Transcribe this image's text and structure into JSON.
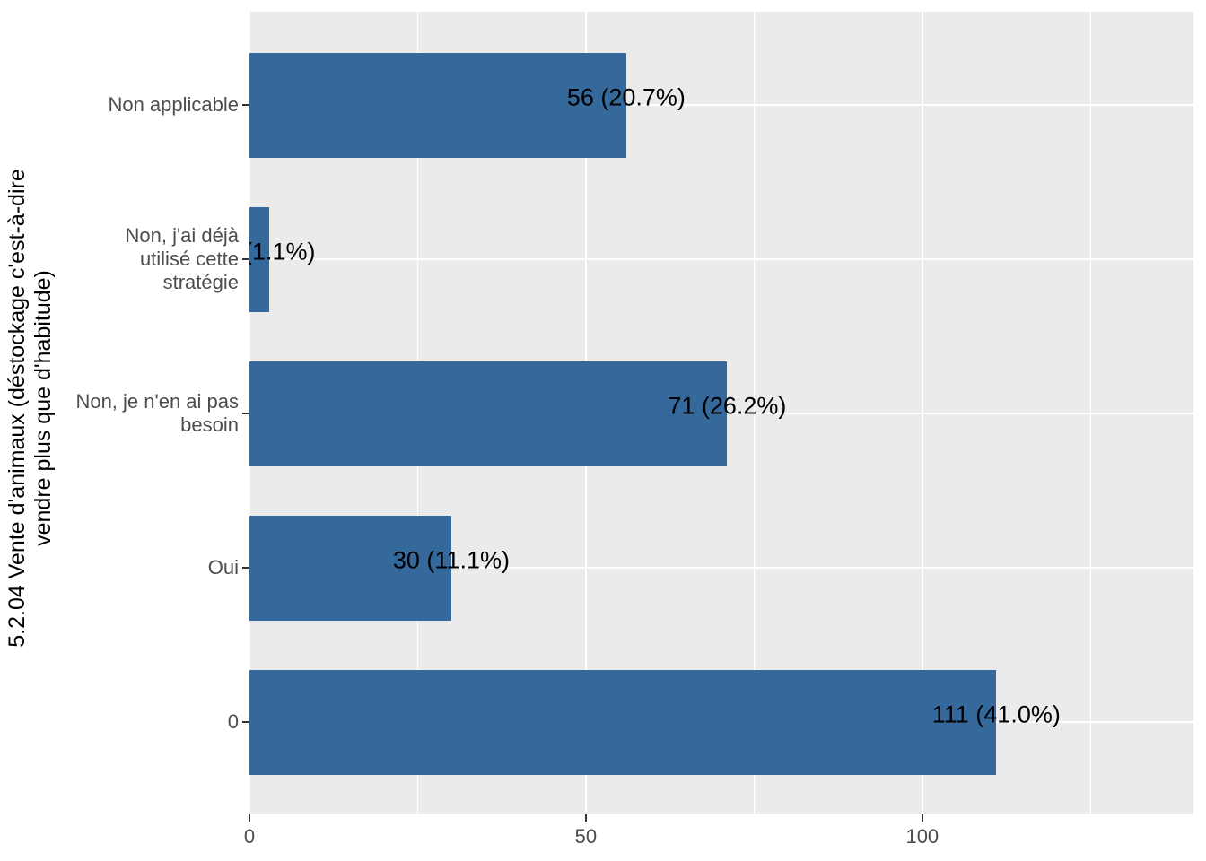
{
  "figure": {
    "panel_background": "#EBEBEB",
    "bar_color": "#35689B",
    "grid_color": "#FFFFFF",
    "axis_text_color": "#4D4D4D",
    "bar_label_color": "#000000"
  },
  "chart_data": {
    "type": "bar",
    "orientation": "horizontal",
    "title": "",
    "y_axis_title": "5.2.04 Vente d'animaux (déstockage c'est-à-dire\nvendre plus que d'habitude)",
    "xlabel": "",
    "categories": [
      "Non applicable",
      "Non, j'ai déjà\nutilisé cette\nstratégie",
      "Non, je n'en ai pas\nbesoin",
      "Oui",
      "0"
    ],
    "values": [
      56,
      3,
      71,
      30,
      111
    ],
    "bar_labels": [
      "56 (20.7%)",
      "3 (1.1%)",
      "71 (26.2%)",
      "30 (11.1%)",
      "111 (41.0%)"
    ],
    "percentages": [
      20.7,
      1.1,
      26.2,
      11.1,
      41.0
    ],
    "x_major_ticks": [
      0,
      50,
      100
    ],
    "x_minor_gridlines": [
      25,
      75,
      125
    ],
    "xlim": [
      0,
      140.3
    ],
    "grid": true,
    "legend_position": "none"
  }
}
